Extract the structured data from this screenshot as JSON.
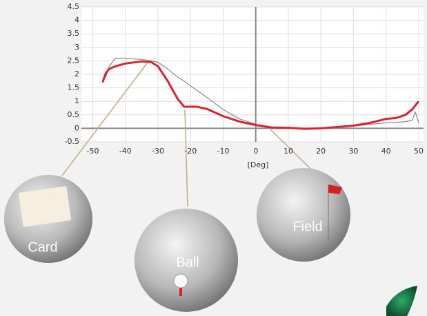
{
  "chart_data": {
    "type": "line",
    "x": [
      -47,
      -46,
      -45,
      -43,
      -40,
      -35,
      -32,
      -30,
      -27,
      -24,
      -22,
      -18,
      -15,
      -10,
      -5,
      0,
      5,
      10,
      15,
      20,
      25,
      30,
      35,
      40,
      43,
      46,
      48,
      49,
      50
    ],
    "series": [
      {
        "color": "#888888",
        "values": [
          null,
          1.9,
          2.3,
          2.6,
          2.6,
          2.55,
          2.5,
          2.45,
          2.2,
          1.9,
          1.75,
          1.4,
          1.15,
          0.7,
          0.35,
          0.15,
          0.05,
          0.02,
          0,
          0,
          0.03,
          0.08,
          0.15,
          0.2,
          0.22,
          0.25,
          0.3,
          0.6,
          0.2
        ]
      },
      {
        "color": "#e0202a",
        "values": [
          1.7,
          2.05,
          2.2,
          2.3,
          2.4,
          2.48,
          2.45,
          2.3,
          1.75,
          1.1,
          0.8,
          0.8,
          0.72,
          0.45,
          0.25,
          0.12,
          0.03,
          0.02,
          -0.02,
          0,
          0.05,
          0.1,
          0.2,
          0.35,
          0.38,
          0.5,
          0.7,
          0.85,
          1.0
        ]
      }
    ],
    "xlim": [
      -53.5,
      51.5
    ],
    "ylim": [
      -0.5,
      4.5
    ],
    "xticks": [
      -50,
      -40,
      -30,
      -20,
      -10,
      0,
      10,
      20,
      30,
      40,
      50
    ],
    "yticks": [
      -0.5,
      0,
      0.5,
      1,
      1.5,
      2,
      2.5,
      3,
      3.5,
      4,
      4.5
    ],
    "grid": true,
    "xlabel": "[Deg]",
    "annotations": [
      "Card",
      "Ball",
      "Field"
    ]
  }
}
